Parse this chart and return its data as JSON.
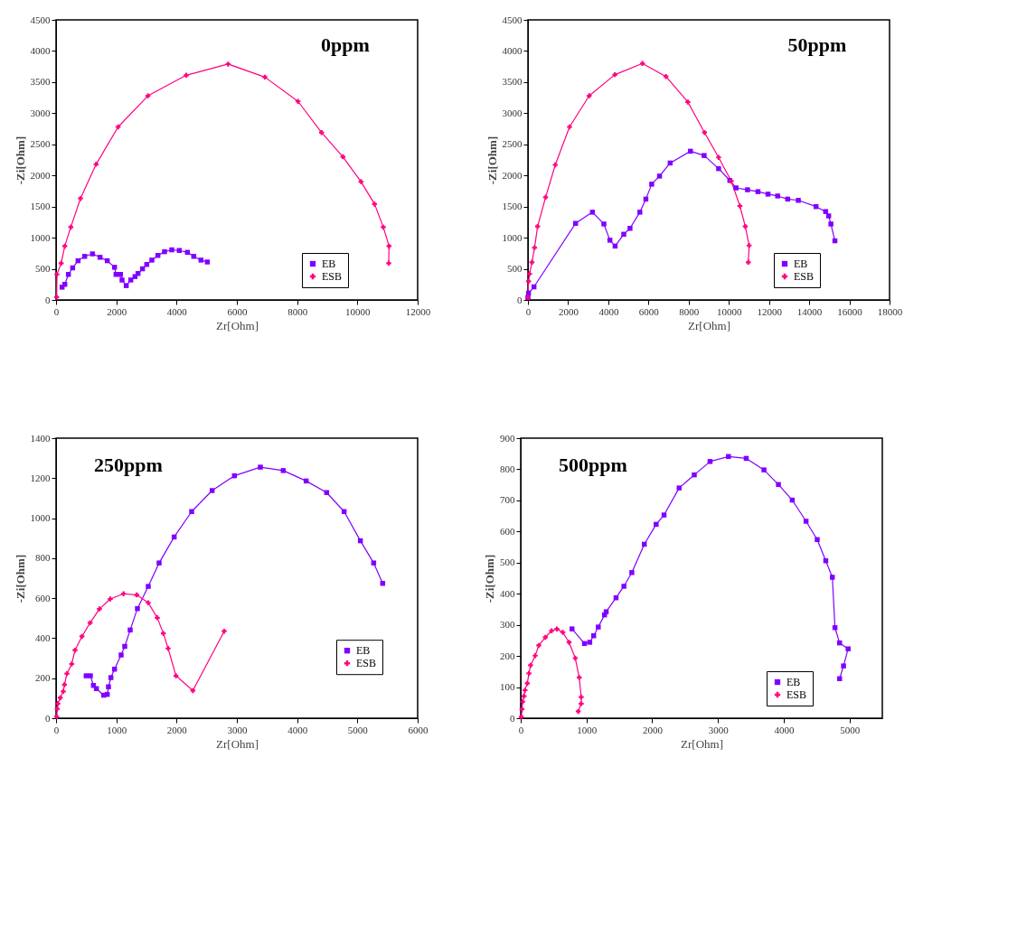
{
  "chart_data": [
    {
      "type": "line",
      "title": "0ppm",
      "xlabel": "Zr[Ohm]",
      "ylabel": "-Zi[Ohm]",
      "xlim": [
        0,
        12000
      ],
      "xticks": [
        0,
        2000,
        4000,
        6000,
        8000,
        10000,
        12000
      ],
      "ylim": [
        0,
        4500
      ],
      "yticks": [
        0,
        500,
        1000,
        1500,
        2000,
        2500,
        3000,
        3500,
        4000,
        4500
      ],
      "legend": "bottom right",
      "grid": false,
      "line_style": "solid",
      "series": [
        {
          "name": "EB",
          "color": "#8000ff",
          "marker": "square",
          "x": [
            200,
            290,
            410,
            550,
            730,
            950,
            1210,
            1460,
            1700,
            1940,
            1990,
            2140,
            2190,
            2330,
            2480,
            2620,
            2720,
            2870,
            3010,
            3180,
            3380,
            3600,
            3840,
            4090,
            4360,
            4570,
            4810,
            5020
          ],
          "values": [
            205,
            250,
            410,
            515,
            630,
            700,
            740,
            685,
            630,
            525,
            410,
            410,
            320,
            230,
            320,
            375,
            425,
            500,
            570,
            640,
            715,
            775,
            805,
            795,
            765,
            700,
            640,
            610
          ]
        },
        {
          "name": "ESB",
          "color": "#ff0080",
          "marker": "cross",
          "x": [
            20,
            30,
            170,
            290,
            490,
            810,
            1330,
            2060,
            3050,
            4320,
            5710,
            6930,
            8030,
            8810,
            9520,
            10120,
            10570,
            10860,
            11050,
            11040
          ],
          "values": [
            45,
            410,
            590,
            865,
            1170,
            1630,
            2180,
            2780,
            3280,
            3610,
            3790,
            3580,
            3190,
            2690,
            2300,
            1900,
            1540,
            1170,
            865,
            590
          ]
        }
      ]
    },
    {
      "type": "line",
      "title": "50ppm",
      "xlabel": "Zr[Ohm]",
      "ylabel": "-Zi[Ohm]",
      "xlim": [
        0,
        18000
      ],
      "xticks": [
        0,
        2000,
        4000,
        6000,
        8000,
        10000,
        12000,
        14000,
        16000,
        18000
      ],
      "ylim": [
        0,
        4500
      ],
      "yticks": [
        0,
        500,
        1000,
        1500,
        2000,
        2500,
        3000,
        3500,
        4000,
        4500
      ],
      "legend": "bottom right",
      "grid": false,
      "line_style": "solid",
      "series": [
        {
          "name": "EB",
          "color": "#8000ff",
          "marker": "square",
          "x": [
            0,
            30,
            300,
            2370,
            3210,
            3780,
            4080,
            4340,
            4770,
            5080,
            5570,
            5870,
            6160,
            6550,
            7080,
            8090,
            8770,
            9490,
            10050,
            10360,
            10930,
            11450,
            11950,
            12430,
            12930,
            13460,
            14340,
            14820,
            14970,
            15080,
            15280
          ],
          "values": [
            40,
            110,
            210,
            1230,
            1410,
            1220,
            960,
            865,
            1055,
            1150,
            1410,
            1620,
            1860,
            1990,
            2200,
            2390,
            2320,
            2110,
            1920,
            1800,
            1770,
            1740,
            1700,
            1670,
            1620,
            1600,
            1500,
            1420,
            1350,
            1220,
            950
          ]
        },
        {
          "name": "ESB",
          "color": "#ff0080",
          "marker": "cross",
          "x": [
            0,
            30,
            80,
            200,
            330,
            480,
            880,
            1360,
            2070,
            3050,
            4330,
            5700,
            6870,
            7960,
            8790,
            9490,
            10120,
            10550,
            10820,
            11010,
            10970
          ],
          "values": [
            40,
            300,
            420,
            605,
            840,
            1180,
            1650,
            2170,
            2780,
            3280,
            3620,
            3800,
            3590,
            3180,
            2690,
            2290,
            1910,
            1510,
            1180,
            875,
            605
          ]
        }
      ]
    },
    {
      "type": "line",
      "title": "250ppm",
      "xlabel": "Zr[Ohm]",
      "ylabel": "-Zi[Ohm]",
      "xlim": [
        0,
        6000
      ],
      "xticks": [
        0,
        1000,
        2000,
        3000,
        4000,
        5000,
        6000
      ],
      "ylim": [
        0,
        1400
      ],
      "yticks": [
        0,
        200,
        400,
        600,
        800,
        1000,
        1200,
        1400
      ],
      "legend": "right",
      "grid": false,
      "line_style": "solid",
      "series": [
        {
          "name": "EB",
          "color": "#8000ff",
          "marker": "square",
          "x": [
            500,
            570,
            620,
            670,
            790,
            850,
            870,
            910,
            970,
            1080,
            1140,
            1230,
            1350,
            1530,
            1710,
            1960,
            2250,
            2590,
            2960,
            3390,
            3770,
            4150,
            4490,
            4780,
            5050,
            5270,
            5420
          ],
          "values": [
            212,
            212,
            164,
            148,
            115,
            119,
            157,
            203,
            245,
            316,
            359,
            441,
            548,
            659,
            776,
            906,
            1033,
            1138,
            1212,
            1255,
            1238,
            1186,
            1128,
            1033,
            887,
            776,
            674
          ]
        },
        {
          "name": "ESB",
          "color": "#ff0080",
          "marker": "cross",
          "x": [
            10,
            20,
            30,
            70,
            120,
            140,
            180,
            260,
            315,
            430,
            565,
            720,
            900,
            1120,
            1340,
            1530,
            1680,
            1780,
            1860,
            1990,
            2270,
            2790
          ],
          "values": [
            8,
            47,
            73,
            102,
            134,
            168,
            223,
            271,
            340,
            409,
            477,
            546,
            596,
            622,
            616,
            577,
            502,
            424,
            349,
            212,
            138,
            435
          ]
        }
      ]
    },
    {
      "type": "line",
      "title": "500ppm",
      "xlabel": "Zr[Ohm]",
      "ylabel": "-Zi[Ohm]",
      "xlim": [
        0,
        5500
      ],
      "xticks": [
        0,
        1000,
        2000,
        3000,
        4000,
        5000
      ],
      "ylim": [
        0,
        900
      ],
      "yticks": [
        0,
        100,
        200,
        300,
        400,
        500,
        600,
        700,
        800,
        900
      ],
      "legend": "bottom right",
      "grid": false,
      "line_style": "solid",
      "series": [
        {
          "name": "EB",
          "color": "#8000ff",
          "marker": "square",
          "x": [
            780,
            970,
            1050,
            1110,
            1180,
            1275,
            1300,
            1450,
            1570,
            1690,
            1880,
            2060,
            2180,
            2410,
            2640,
            2880,
            3160,
            3430,
            3700,
            3920,
            4130,
            4340,
            4510,
            4640,
            4740,
            4780,
            4850,
            4980,
            4910,
            4850
          ],
          "values": [
            287,
            240,
            244,
            265,
            293,
            332,
            342,
            387,
            424,
            468,
            559,
            623,
            653,
            740,
            782,
            825,
            841,
            835,
            798,
            751,
            701,
            633,
            574,
            506,
            453,
            291,
            242,
            223,
            168,
            127
          ]
        },
        {
          "name": "ESB",
          "color": "#ff0080",
          "marker": "cross",
          "x": [
            10,
            20,
            30,
            50,
            65,
            100,
            125,
            150,
            220,
            275,
            375,
            470,
            550,
            640,
            735,
            830,
            890,
            920,
            920,
            875
          ],
          "values": [
            4,
            29,
            53,
            71,
            90,
            112,
            144,
            170,
            201,
            234,
            260,
            281,
            287,
            276,
            244,
            193,
            131,
            68,
            47,
            22
          ]
        }
      ]
    }
  ]
}
